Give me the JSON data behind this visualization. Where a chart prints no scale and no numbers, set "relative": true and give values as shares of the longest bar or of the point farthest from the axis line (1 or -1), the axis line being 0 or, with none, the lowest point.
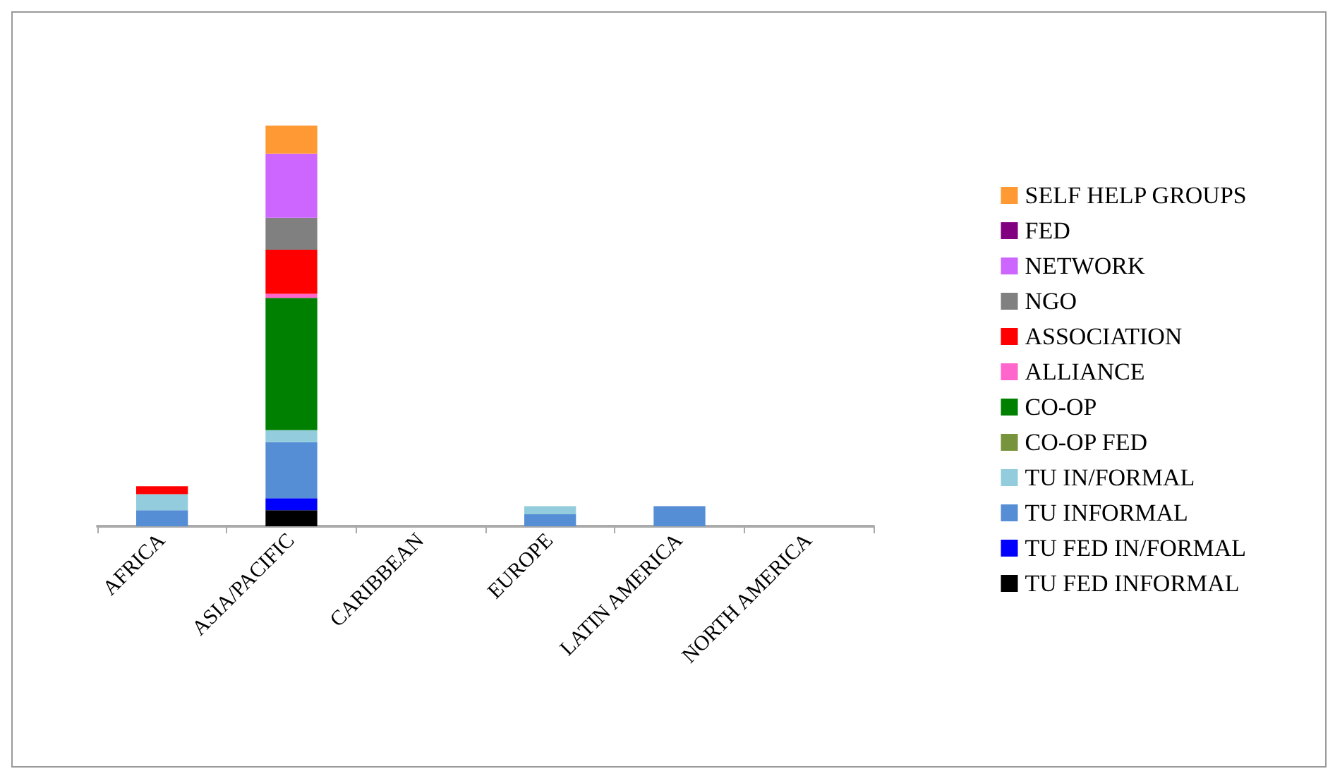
{
  "chart_data": {
    "type": "bar",
    "stacked": true,
    "relative": true,
    "legend": "right",
    "categories": [
      "AFRICA",
      "ASIA/PACIFIC",
      "CARIBBEAN",
      "EUROPE",
      "LATIN AMERICA",
      "NORTH AMERICA"
    ],
    "series": [
      {
        "name": "TU FED INFORMAL",
        "color": "#000000",
        "values": [
          0,
          0.04,
          0,
          0,
          0,
          0
        ]
      },
      {
        "name": "TU FED IN/FORMAL",
        "color": "#0000ff",
        "values": [
          0,
          0.03,
          0,
          0,
          0,
          0
        ]
      },
      {
        "name": "TU INFORMAL",
        "color": "#558ed5",
        "values": [
          0.04,
          0.14,
          0,
          0.03,
          0.05,
          0
        ]
      },
      {
        "name": "TU IN/FORMAL",
        "color": "#93cddd",
        "values": [
          0.04,
          0.03,
          0,
          0.02,
          0,
          0
        ]
      },
      {
        "name": "CO-OP FED",
        "color": "#77933c",
        "values": [
          0,
          0,
          0,
          0,
          0,
          0
        ]
      },
      {
        "name": "CO-OP",
        "color": "#008000",
        "values": [
          0,
          0.33,
          0,
          0,
          0,
          0
        ]
      },
      {
        "name": "ALLIANCE",
        "color": "#ff66cc",
        "values": [
          0,
          0.01,
          0,
          0,
          0,
          0
        ]
      },
      {
        "name": "ASSOCIATION",
        "color": "#ff0000",
        "values": [
          0.02,
          0.11,
          0,
          0,
          0,
          0
        ]
      },
      {
        "name": "NGO",
        "color": "#808080",
        "values": [
          0,
          0.08,
          0,
          0,
          0,
          0
        ]
      },
      {
        "name": "NETWORK",
        "color": "#cc66ff",
        "values": [
          0,
          0.16,
          0,
          0,
          0,
          0
        ]
      },
      {
        "name": "FED",
        "color": "#800080",
        "values": [
          0,
          0,
          0,
          0,
          0,
          0
        ]
      },
      {
        "name": "SELF HELP GROUPS",
        "color": "#ff9933",
        "values": [
          0,
          0.07,
          0,
          0,
          0,
          0
        ]
      }
    ]
  }
}
